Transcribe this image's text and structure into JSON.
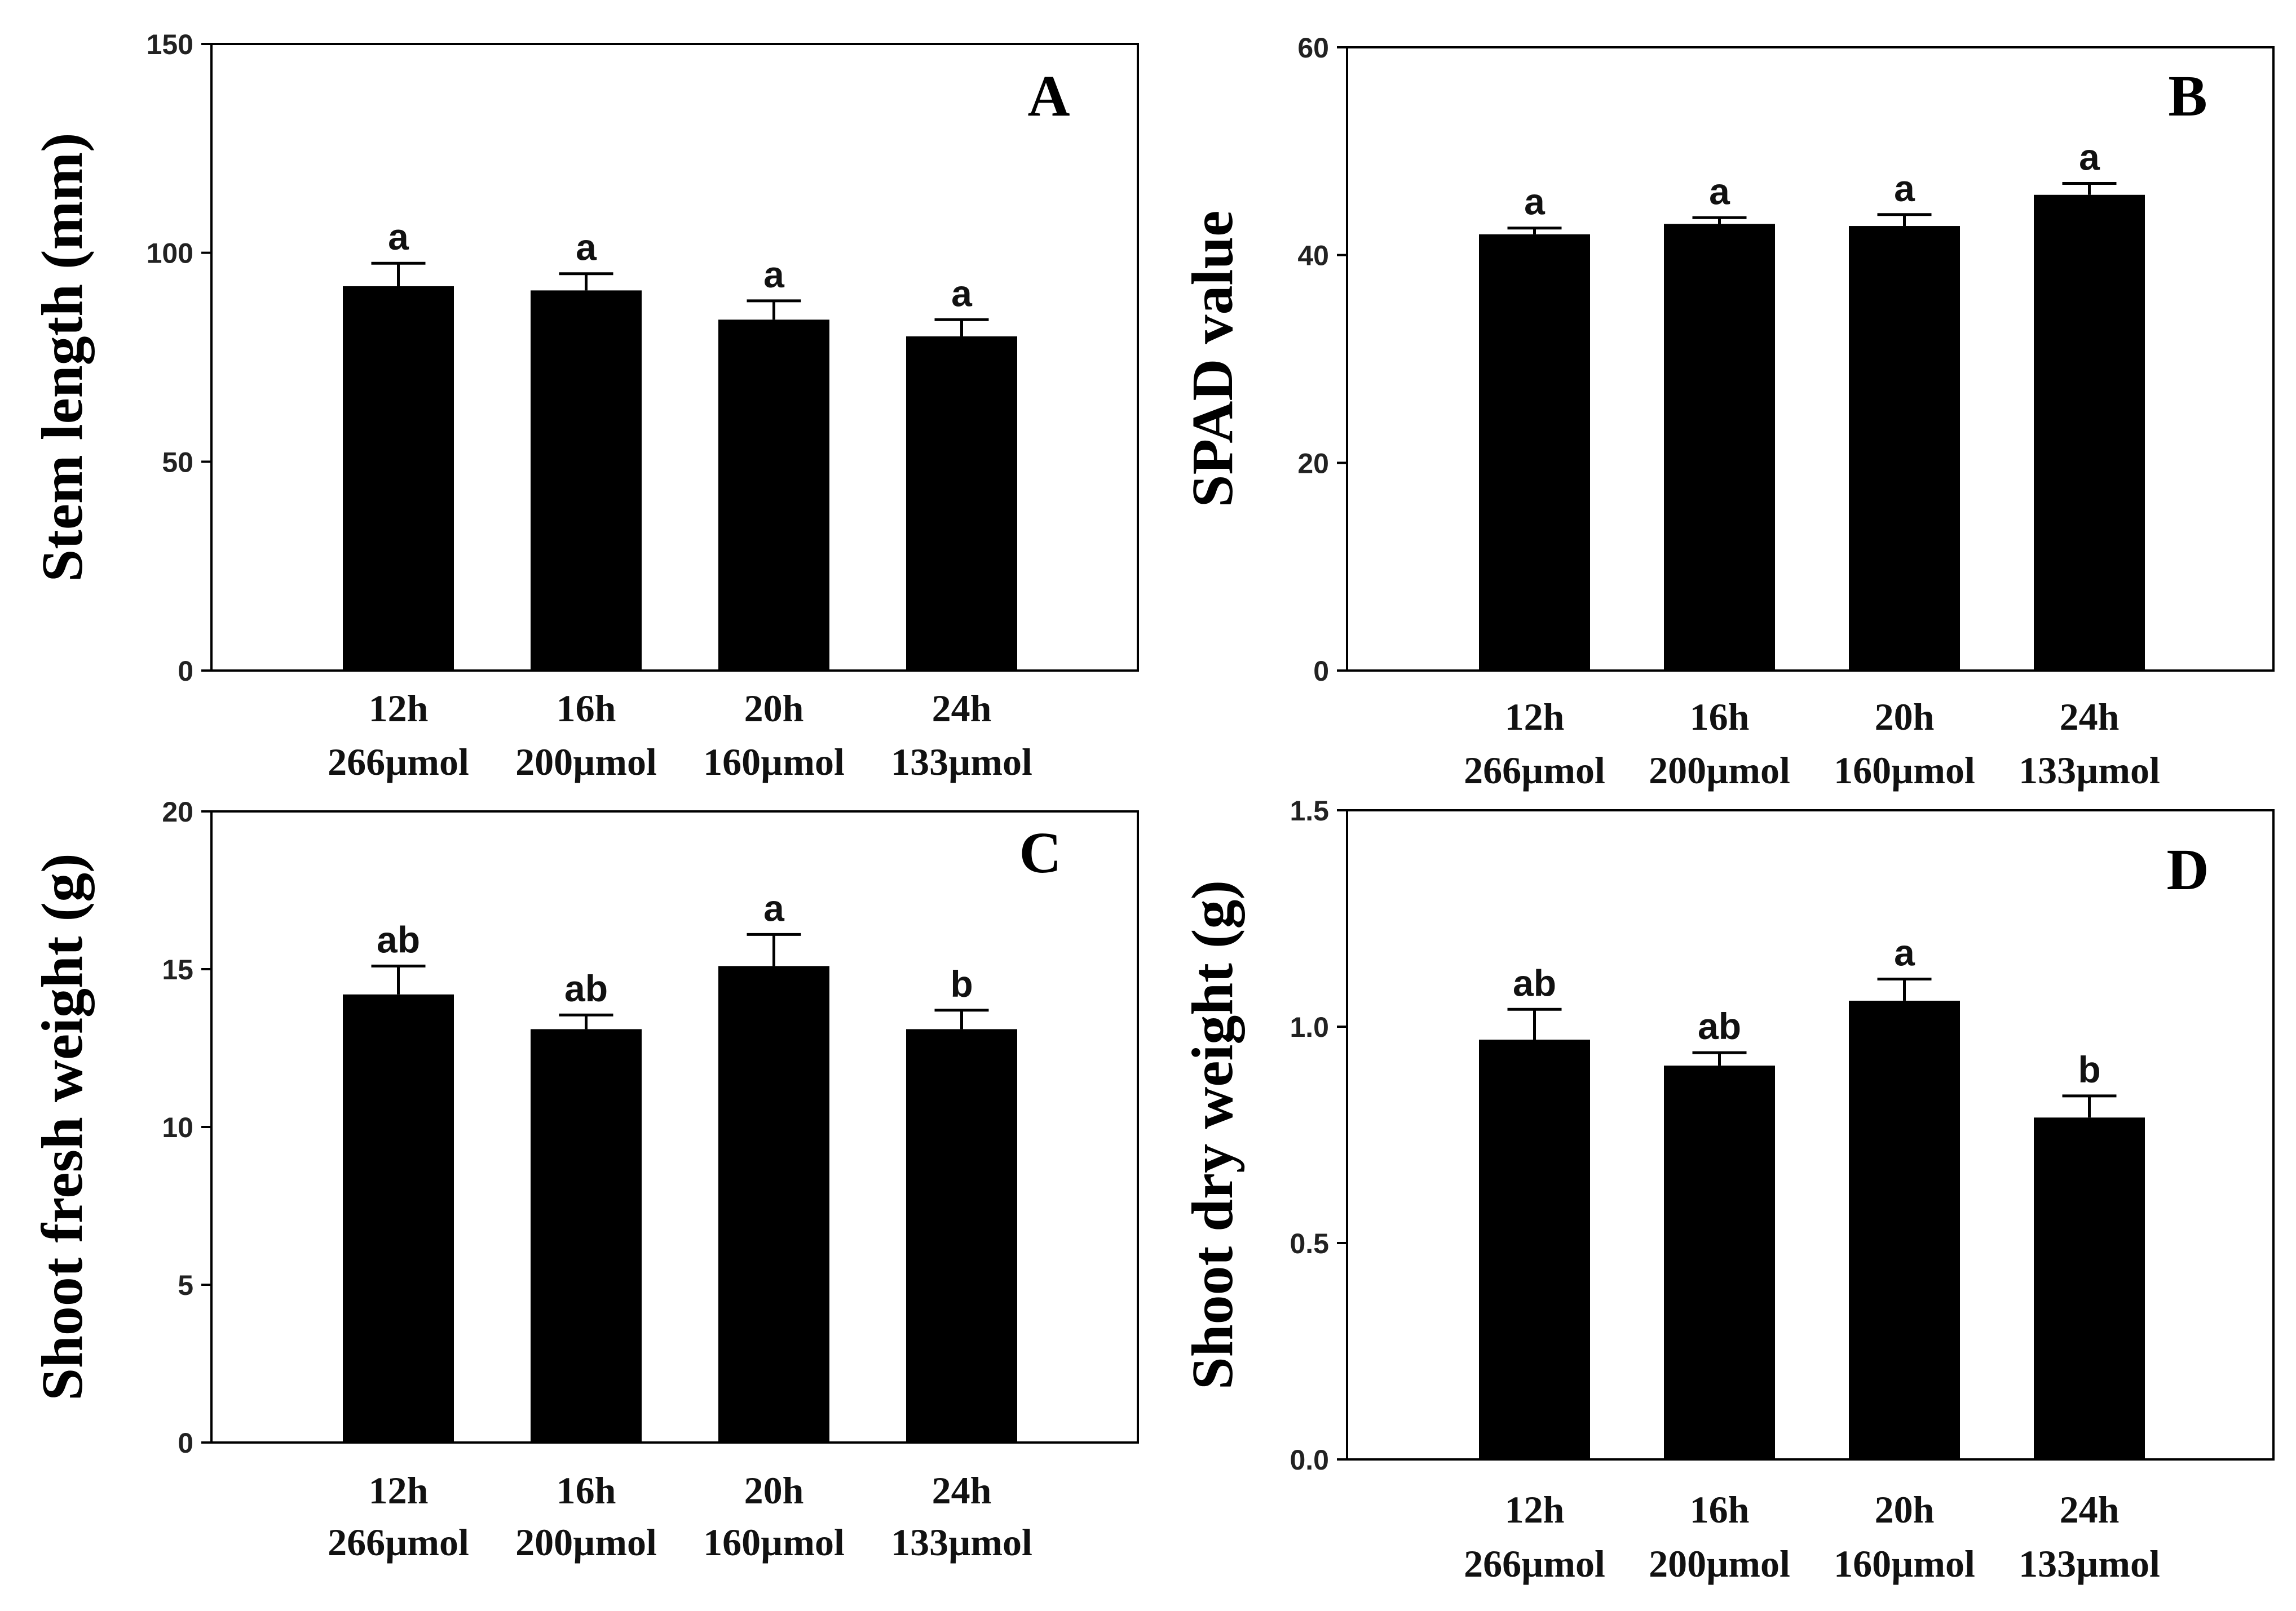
{
  "chart_data": [
    {
      "panel": "A",
      "type": "bar",
      "categories": [
        [
          "12h",
          "266µmol"
        ],
        [
          "16h",
          "200µmol"
        ],
        [
          "20h",
          "160µmol"
        ],
        [
          "24h",
          "133µmol"
        ]
      ],
      "values": [
        92,
        91,
        84,
        80
      ],
      "errors": [
        5.5,
        4,
        4.5,
        4
      ],
      "significance": [
        "a",
        "a",
        "a",
        "a"
      ],
      "ylabel": "Stem length (mm)",
      "ylim": [
        0,
        150
      ],
      "yticks": [
        0,
        50,
        100,
        150
      ],
      "ytick_labels": [
        "0",
        "50",
        "100",
        "150"
      ]
    },
    {
      "panel": "B",
      "type": "bar",
      "categories": [
        [
          "12h",
          "266µmol"
        ],
        [
          "16h",
          "200µmol"
        ],
        [
          "20h",
          "160µmol"
        ],
        [
          "24h",
          "133µmol"
        ]
      ],
      "values": [
        42,
        43,
        42.8,
        45.8
      ],
      "errors": [
        0.6,
        0.6,
        1.1,
        1.1
      ],
      "significance": [
        "a",
        "a",
        "a",
        "a"
      ],
      "ylabel": "SPAD value",
      "ylim": [
        0,
        60
      ],
      "yticks": [
        0,
        20,
        40,
        60
      ],
      "ytick_labels": [
        "0",
        "20",
        "40",
        "60"
      ]
    },
    {
      "panel": "C",
      "type": "bar",
      "categories": [
        [
          "12h",
          "266µmol"
        ],
        [
          "16h",
          "200µmol"
        ],
        [
          "20h",
          "160µmol"
        ],
        [
          "24h",
          "133µmol"
        ]
      ],
      "values": [
        14.2,
        13.1,
        15.1,
        13.1
      ],
      "errors": [
        0.9,
        0.45,
        1.0,
        0.6
      ],
      "significance": [
        "ab",
        "ab",
        "a",
        "b"
      ],
      "ylabel": "Shoot fresh weight (g)",
      "ylim": [
        0,
        20
      ],
      "yticks": [
        0,
        5,
        10,
        15,
        20
      ],
      "ytick_labels": [
        "0",
        "5",
        "10",
        "15",
        "20"
      ]
    },
    {
      "panel": "D",
      "type": "bar",
      "categories": [
        [
          "12h",
          "266µmol"
        ],
        [
          "16h",
          "200µmol"
        ],
        [
          "20h",
          "160µmol"
        ],
        [
          "24h",
          "133µmol"
        ]
      ],
      "values": [
        0.97,
        0.91,
        1.06,
        0.79
      ],
      "errors": [
        0.07,
        0.03,
        0.05,
        0.05
      ],
      "significance": [
        "ab",
        "ab",
        "a",
        "b"
      ],
      "ylabel": "Shoot dry weight (g)",
      "ylim": [
        0,
        1.5
      ],
      "yticks": [
        0,
        0.5,
        1.0,
        1.5
      ],
      "ytick_labels": [
        "0.0",
        "0.5",
        "1.0",
        "1.5"
      ]
    }
  ],
  "colors": {
    "bar": "#000000",
    "axis": "#000000"
  }
}
